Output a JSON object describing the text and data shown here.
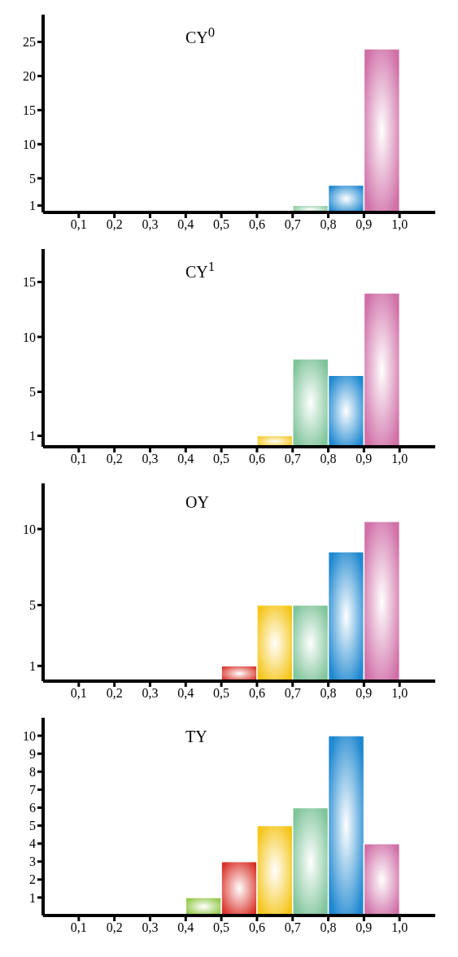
{
  "chart_data": [
    {
      "type": "histogram",
      "title": "CY$^{0}$",
      "bins": [
        0.7,
        0.8,
        0.9,
        1.0
      ],
      "values": [
        1,
        4,
        24
      ],
      "colors": [
        "#7fc49a",
        "#1e88d0",
        "#d070a8"
      ],
      "xlim": [
        0,
        1.1
      ],
      "xticks": [
        {
          "value": 0.1,
          "label": "0,1"
        },
        {
          "value": 0.2,
          "label": "0,2"
        },
        {
          "value": 0.3,
          "label": "0,3"
        },
        {
          "value": 0.4,
          "label": "0,4"
        },
        {
          "value": 0.5,
          "label": "0,5"
        },
        {
          "value": 0.6,
          "label": "0,6"
        },
        {
          "value": 0.7,
          "label": "0,7"
        },
        {
          "value": 0.8,
          "label": "0,8"
        },
        {
          "value": 0.9,
          "label": "0,9"
        },
        {
          "value": 1.0,
          "label": "1,0"
        }
      ],
      "ylim": [
        0,
        29
      ],
      "yticks": [
        1,
        5,
        10,
        15,
        20,
        25
      ]
    },
    {
      "type": "histogram",
      "title": "CY$^{1}$",
      "bins": [
        0.6,
        0.7,
        0.8,
        0.9,
        1.0
      ],
      "values": [
        1,
        8,
        6.5,
        14
      ],
      "colors": [
        "#f5c518",
        "#7fc49a",
        "#1e88d0",
        "#d070a8"
      ],
      "xlim": [
        0,
        1.1
      ],
      "xticks": [
        {
          "value": 0.1,
          "label": "0,1"
        },
        {
          "value": 0.2,
          "label": "0,2"
        },
        {
          "value": 0.3,
          "label": "0,3"
        },
        {
          "value": 0.4,
          "label": "0,4"
        },
        {
          "value": 0.5,
          "label": "0,5"
        },
        {
          "value": 0.6,
          "label": "0,6"
        },
        {
          "value": 0.7,
          "label": "0,7"
        },
        {
          "value": 0.8,
          "label": "0,8"
        },
        {
          "value": 0.9,
          "label": "0,9"
        },
        {
          "value": 1.0,
          "label": "1,0"
        }
      ],
      "ylim": [
        0,
        18
      ],
      "yticks": [
        1,
        5,
        10,
        15
      ]
    },
    {
      "type": "histogram",
      "title": "OY",
      "bins": [
        0.5,
        0.6,
        0.7,
        0.8,
        0.9,
        1.0
      ],
      "values": [
        1,
        5,
        5,
        8.5,
        10.5
      ],
      "colors": [
        "#d9342b",
        "#f5c518",
        "#7fc49a",
        "#1e88d0",
        "#d070a8"
      ],
      "xlim": [
        0,
        1.1
      ],
      "xticks": [
        {
          "value": 0.1,
          "label": "0,1"
        },
        {
          "value": 0.2,
          "label": "0,2"
        },
        {
          "value": 0.3,
          "label": "0,3"
        },
        {
          "value": 0.4,
          "label": "0,4"
        },
        {
          "value": 0.5,
          "label": "0,5"
        },
        {
          "value": 0.6,
          "label": "0,6"
        },
        {
          "value": 0.7,
          "label": "0,7"
        },
        {
          "value": 0.8,
          "label": "0,8"
        },
        {
          "value": 0.9,
          "label": "0,9"
        },
        {
          "value": 1.0,
          "label": "1,0"
        }
      ],
      "ylim": [
        0,
        13
      ],
      "yticks": [
        1,
        5,
        10
      ]
    },
    {
      "type": "histogram",
      "title": "TY",
      "bins": [
        0.4,
        0.5,
        0.6,
        0.7,
        0.8,
        0.9,
        1.0
      ],
      "values": [
        1,
        3,
        5,
        6,
        10,
        4
      ],
      "colors": [
        "#8dc63f",
        "#d9342b",
        "#f5c518",
        "#7fc49a",
        "#1e88d0",
        "#d070a8"
      ],
      "xlim": [
        0,
        1.1
      ],
      "xticks": [
        {
          "value": 0.1,
          "label": "0,1"
        },
        {
          "value": 0.2,
          "label": "0,2"
        },
        {
          "value": 0.3,
          "label": "0,3"
        },
        {
          "value": 0.4,
          "label": "0,4"
        },
        {
          "value": 0.5,
          "label": "0,5"
        },
        {
          "value": 0.6,
          "label": "0,6"
        },
        {
          "value": 0.7,
          "label": "0,7"
        },
        {
          "value": 0.8,
          "label": "0,8"
        },
        {
          "value": 0.9,
          "label": "0,9"
        },
        {
          "value": 1.0,
          "label": "1,0"
        }
      ],
      "ylim": [
        0,
        11
      ],
      "yticks": [
        1,
        2,
        3,
        4,
        5,
        6,
        7,
        8,
        9,
        10
      ]
    }
  ]
}
